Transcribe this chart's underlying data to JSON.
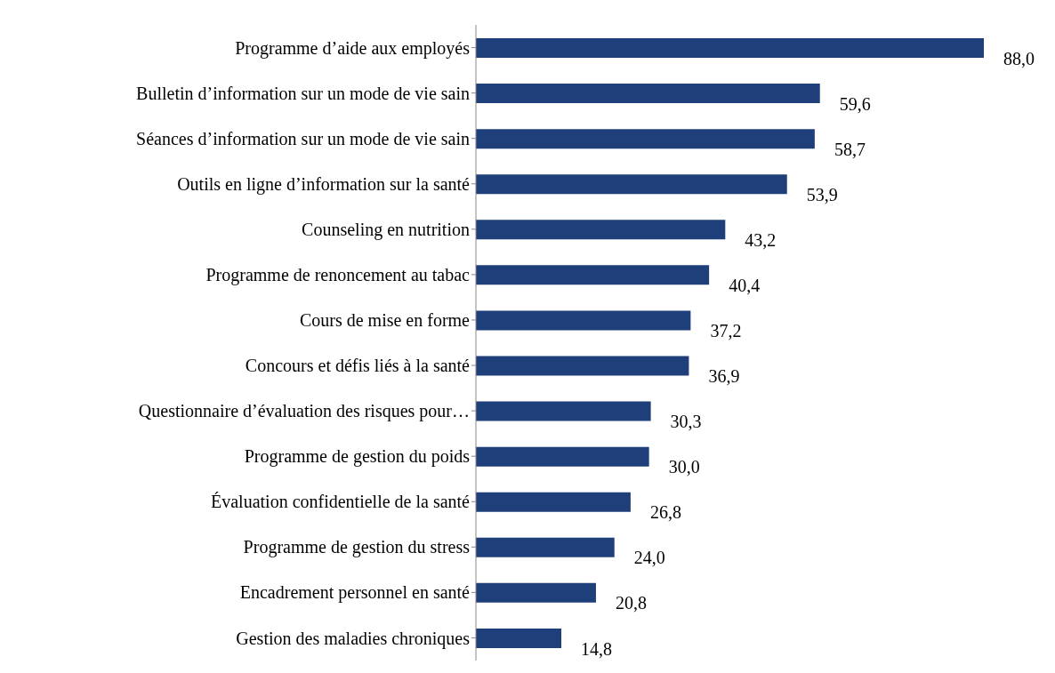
{
  "chart_data": {
    "type": "bar",
    "orientation": "horizontal",
    "categories": [
      "Programme d’aide aux employés",
      "Bulletin d’information sur un mode de vie sain",
      "Séances d’information sur un mode de vie sain",
      "Outils en ligne d’information sur la santé",
      "Counseling en nutrition",
      "Programme de renoncement au tabac",
      "Cours de mise en forme",
      "Concours et défis liés à la santé",
      "Questionnaire d’évaluation des risques pour…",
      "Programme de gestion du poids",
      "Évaluation confidentielle de la santé",
      "Programme de gestion du stress",
      "Encadrement personnel en santé",
      "Gestion des maladies chroniques"
    ],
    "values": [
      88.0,
      59.6,
      58.7,
      53.9,
      43.2,
      40.4,
      37.2,
      36.9,
      30.3,
      30.0,
      26.8,
      24.0,
      20.8,
      14.8
    ],
    "value_labels": [
      "88,0",
      "59,6",
      "58,7",
      "53,9",
      "43,2",
      "40,4",
      "37,2",
      "36,9",
      "30,3",
      "30,0",
      "26,8",
      "24,0",
      "20,8",
      "14,8"
    ],
    "color": "#1f3f7a",
    "grid": false,
    "legend": false
  }
}
